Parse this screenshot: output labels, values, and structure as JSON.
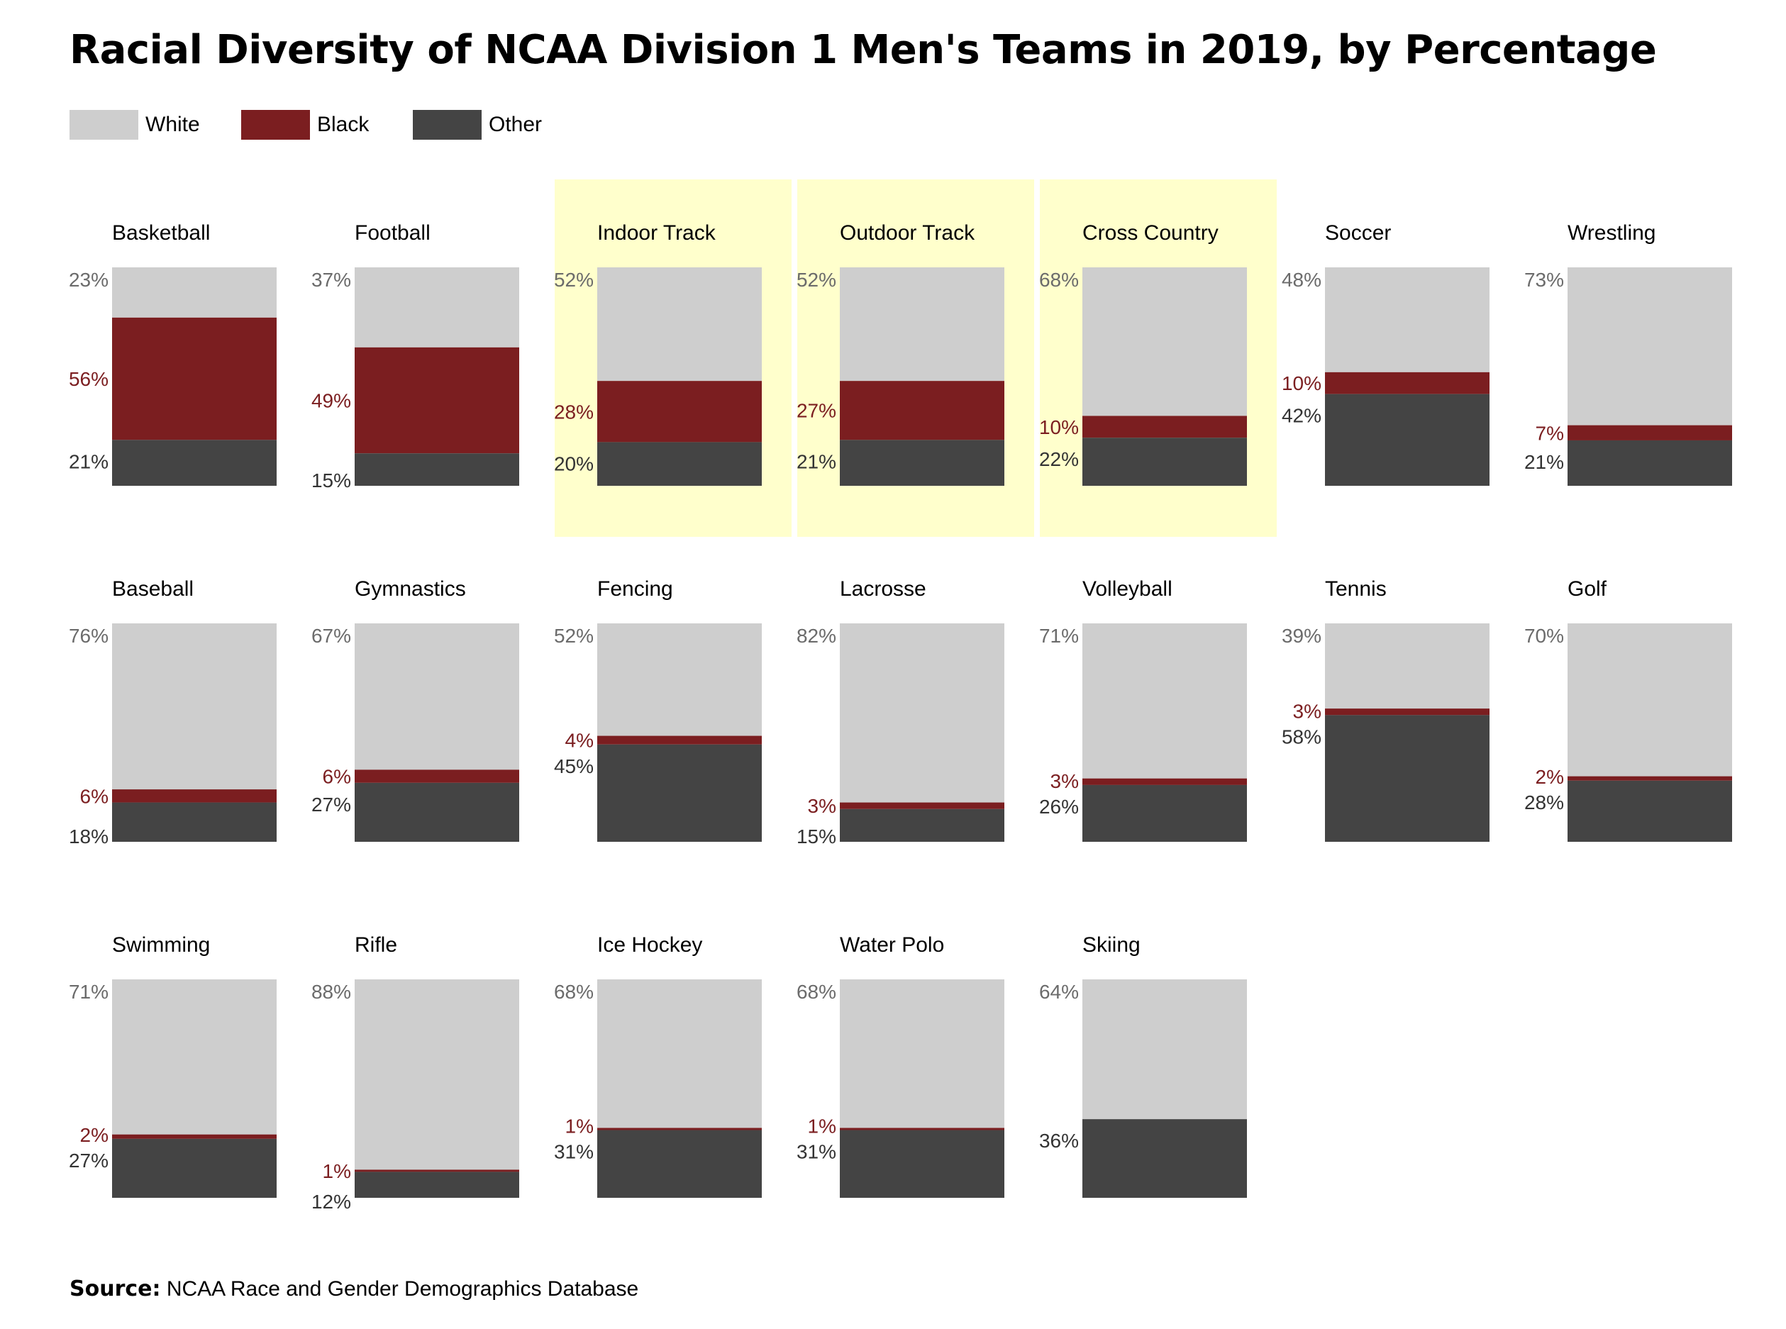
{
  "title": "Racial Diversity of NCAA Division 1 Men's Teams in 2019, by Percentage",
  "legend": [
    {
      "label": "White",
      "color": "#cecece"
    },
    {
      "label": "Black",
      "color": "#7b1e20"
    },
    {
      "label": "Other",
      "color": "#444444"
    }
  ],
  "source": {
    "label": "Source:",
    "text": "NCAA Race and Gender Demographics Database"
  },
  "colors": {
    "white": "#cecece",
    "black": "#7b1e20",
    "other": "#444444",
    "highlight": "#ffffcc",
    "label_white": "#6b6b6b",
    "label_black": "#7b1e20",
    "label_other": "#333333"
  },
  "chart_data": {
    "type": "bar",
    "subtype": "stacked-100",
    "series_order": [
      "White",
      "Black",
      "Other"
    ],
    "panels": [
      {
        "sport": "Basketball",
        "white": 23,
        "black": 56,
        "other": 21,
        "highlight": false
      },
      {
        "sport": "Football",
        "white": 37,
        "black": 49,
        "other": 15,
        "highlight": false
      },
      {
        "sport": "Indoor Track",
        "white": 52,
        "black": 28,
        "other": 20,
        "highlight": true
      },
      {
        "sport": "Outdoor Track",
        "white": 52,
        "black": 27,
        "other": 21,
        "highlight": true
      },
      {
        "sport": "Cross Country",
        "white": 68,
        "black": 10,
        "other": 22,
        "highlight": true
      },
      {
        "sport": "Soccer",
        "white": 48,
        "black": 10,
        "other": 42,
        "highlight": false
      },
      {
        "sport": "Wrestling",
        "white": 73,
        "black": 7,
        "other": 21,
        "highlight": false
      },
      {
        "sport": "Baseball",
        "white": 76,
        "black": 6,
        "other": 18,
        "highlight": false
      },
      {
        "sport": "Gymnastics",
        "white": 67,
        "black": 6,
        "other": 27,
        "highlight": false
      },
      {
        "sport": "Fencing",
        "white": 52,
        "black": 4,
        "other": 45,
        "highlight": false
      },
      {
        "sport": "Lacrosse",
        "white": 82,
        "black": 3,
        "other": 15,
        "highlight": false
      },
      {
        "sport": "Volleyball",
        "white": 71,
        "black": 3,
        "other": 26,
        "highlight": false
      },
      {
        "sport": "Tennis",
        "white": 39,
        "black": 3,
        "other": 58,
        "highlight": false
      },
      {
        "sport": "Golf",
        "white": 70,
        "black": 2,
        "other": 28,
        "highlight": false
      },
      {
        "sport": "Swimming",
        "white": 71,
        "black": 2,
        "other": 27,
        "highlight": false
      },
      {
        "sport": "Rifle",
        "white": 88,
        "black": 1,
        "other": 12,
        "highlight": false
      },
      {
        "sport": "Ice Hockey",
        "white": 68,
        "black": 1,
        "other": 31,
        "highlight": false
      },
      {
        "sport": "Water Polo",
        "white": 68,
        "black": 1,
        "other": 31,
        "highlight": false
      },
      {
        "sport": "Skiing",
        "white": 64,
        "black": null,
        "other": 36,
        "highlight": false
      }
    ]
  }
}
